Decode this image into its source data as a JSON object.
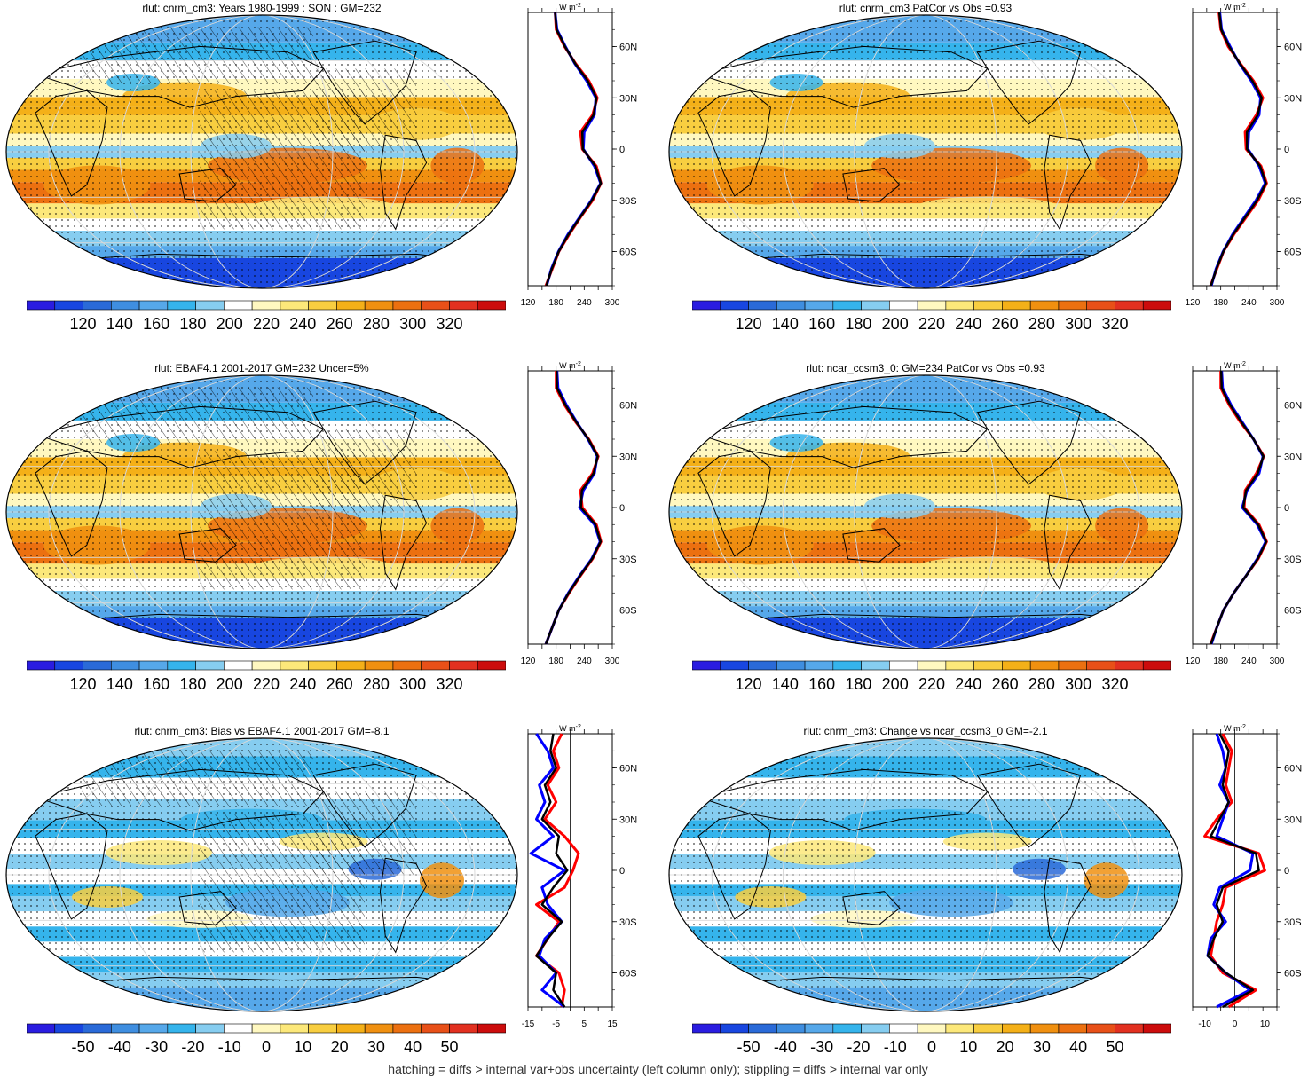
{
  "caption": "hatching = diffs > internal var+obs uncertainty (left column only); stippling = diffs > internal var only",
  "colors": {
    "full": [
      "#2a1ce0",
      "#1846e0",
      "#2a6ad8",
      "#3f8ee0",
      "#56a8ea",
      "#35b4ec",
      "#86cdf0",
      "#ffffff",
      "#fff8c0",
      "#fce87a",
      "#f8ce40",
      "#f4b018",
      "#f09010",
      "#ec7010",
      "#e85018",
      "#e23020",
      "#cc0c0c"
    ],
    "land": "#000000",
    "profile_model": "#0000ff",
    "profile_obs": "#ff0000",
    "profile_mean": "#000000"
  },
  "chart_data": [
    {
      "type": "heatmap",
      "title": "rlut: cnrm_cm3: Years 1980-1999 : SON : GM=232",
      "colorbar_ticks": [
        "120",
        "140",
        "160",
        "180",
        "200",
        "220",
        "240",
        "260",
        "280",
        "300",
        "320"
      ],
      "profile": {
        "unit": "W m",
        "unit_sup": "-2",
        "x_ticks": [
          "120",
          "180",
          "240",
          "300"
        ],
        "xlim": [
          120,
          300
        ],
        "lat_ticks": [
          "60N",
          "30N",
          "0",
          "30S",
          "60S"
        ],
        "lat": [
          80,
          70,
          60,
          50,
          40,
          30,
          20,
          10,
          0,
          -10,
          -20,
          -30,
          -40,
          -50,
          -60,
          -70,
          -80
        ],
        "model": [
          178,
          182,
          200,
          220,
          245,
          265,
          262,
          240,
          238,
          262,
          275,
          255,
          230,
          205,
          185,
          170,
          160
        ],
        "obs": [
          178,
          180,
          198,
          222,
          250,
          268,
          258,
          232,
          236,
          266,
          276,
          258,
          232,
          208,
          186,
          172,
          158
        ]
      }
    },
    {
      "type": "heatmap",
      "title": "rlut: cnrm_cm3 PatCor vs Obs =0.93",
      "colorbar_ticks": [
        "120",
        "140",
        "160",
        "180",
        "200",
        "220",
        "240",
        "260",
        "280",
        "300",
        "320"
      ],
      "profile": {
        "unit": "W m",
        "unit_sup": "-2",
        "x_ticks": [
          "120",
          "180",
          "240",
          "300"
        ],
        "xlim": [
          120,
          300
        ],
        "lat_ticks": [
          "60N",
          "30N",
          "0",
          "30S",
          "60S"
        ],
        "lat": [
          80,
          70,
          60,
          50,
          40,
          30,
          20,
          10,
          0,
          -10,
          -20,
          -30,
          -40,
          -50,
          -60,
          -70,
          -80
        ],
        "model": [
          178,
          182,
          200,
          220,
          245,
          265,
          262,
          240,
          238,
          262,
          275,
          255,
          230,
          205,
          185,
          170,
          160
        ],
        "obs": [
          176,
          180,
          196,
          222,
          250,
          270,
          256,
          232,
          234,
          266,
          278,
          260,
          234,
          208,
          186,
          172,
          158
        ]
      }
    },
    {
      "type": "heatmap",
      "title": "rlut: EBAF4.1 2001-2017 GM=232 Uncer=5%",
      "colorbar_ticks": [
        "120",
        "140",
        "160",
        "180",
        "200",
        "220",
        "240",
        "260",
        "280",
        "300",
        "320"
      ],
      "profile": {
        "unit": "W m",
        "unit_sup": "-2",
        "x_ticks": [
          "120",
          "180",
          "240",
          "300"
        ],
        "xlim": [
          120,
          300
        ],
        "lat_ticks": [
          "60N",
          "30N",
          "0",
          "30S",
          "60S"
        ],
        "lat": [
          80,
          70,
          60,
          50,
          40,
          30,
          20,
          10,
          0,
          -10,
          -20,
          -30,
          -40,
          -50,
          -60,
          -70,
          -80
        ],
        "model": [
          182,
          184,
          202,
          224,
          248,
          268,
          262,
          238,
          230,
          262,
          274,
          256,
          230,
          206,
          186,
          172,
          158
        ],
        "obs": [
          180,
          180,
          198,
          222,
          250,
          270,
          258,
          232,
          236,
          266,
          276,
          258,
          232,
          208,
          186,
          172,
          158
        ]
      }
    },
    {
      "type": "heatmap",
      "title": "rlut: ncar_ccsm3_0: GM=234 PatCor vs Obs =0.93",
      "colorbar_ticks": [
        "120",
        "140",
        "160",
        "180",
        "200",
        "220",
        "240",
        "260",
        "280",
        "300",
        "320"
      ],
      "profile": {
        "unit": "W m",
        "unit_sup": "-2",
        "x_ticks": [
          "120",
          "180",
          "240",
          "300"
        ],
        "xlim": [
          120,
          300
        ],
        "lat_ticks": [
          "60N",
          "30N",
          "0",
          "30S",
          "60S"
        ],
        "lat": [
          80,
          70,
          60,
          50,
          40,
          30,
          20,
          10,
          0,
          -10,
          -20,
          -30,
          -40,
          -50,
          -60,
          -70,
          -80
        ],
        "model": [
          182,
          184,
          202,
          226,
          250,
          270,
          262,
          236,
          226,
          258,
          276,
          258,
          234,
          208,
          186,
          172,
          160
        ],
        "obs": [
          180,
          180,
          198,
          222,
          250,
          272,
          256,
          232,
          230,
          262,
          278,
          260,
          234,
          208,
          186,
          172,
          158
        ]
      }
    },
    {
      "type": "heatmap",
      "title": "rlut: cnrm_cm3: Bias vs EBAF4.1 2001-2017  GM=-8.1",
      "colorbar_ticks": [
        "-50",
        "-40",
        "-30",
        "-20",
        "-10",
        "0",
        "10",
        "20",
        "30",
        "40",
        "50"
      ],
      "profile": {
        "unit": "W m",
        "unit_sup": "-2",
        "x_ticks": [
          "-15",
          "-5",
          "5",
          "15"
        ],
        "xlim": [
          -15,
          15
        ],
        "lat_ticks": [
          "60N",
          "30N",
          "0",
          "30S",
          "60S"
        ],
        "lat": [
          80,
          70,
          60,
          50,
          40,
          30,
          20,
          10,
          0,
          -10,
          -20,
          -30,
          -40,
          -50,
          -60,
          -70,
          -80
        ],
        "model": [
          -12,
          -8,
          -6,
          -11,
          -9,
          -12,
          -6,
          -14,
          -2,
          -10,
          -8,
          -3,
          -9,
          -11,
          -5,
          -10,
          -2
        ],
        "obs": [
          -3,
          -6,
          -4,
          -8,
          -5,
          -9,
          -2,
          3,
          1,
          -2,
          -12,
          -4,
          -8,
          -12,
          -4,
          -2,
          -3
        ],
        "mean": [
          -6,
          -7,
          -5,
          -9,
          -7,
          -10,
          -4,
          -5,
          -1,
          -6,
          -10,
          -3,
          -8,
          -12,
          -5,
          -6,
          -2
        ]
      }
    },
    {
      "type": "heatmap",
      "title": "rlut: cnrm_cm3: Change vs ncar_ccsm3_0 GM=-2.1",
      "colorbar_ticks": [
        "-50",
        "-40",
        "-30",
        "-20",
        "-10",
        "0",
        "10",
        "20",
        "30",
        "40",
        "50"
      ],
      "profile": {
        "unit": "W m",
        "unit_sup": "-2",
        "x_ticks": [
          "-10",
          "0",
          "10"
        ],
        "xlim": [
          -14,
          14
        ],
        "lat_ticks": [
          "60N",
          "30N",
          "0",
          "30S",
          "60S"
        ],
        "lat": [
          80,
          70,
          60,
          50,
          40,
          30,
          20,
          10,
          0,
          -10,
          -20,
          -30,
          -40,
          -50,
          -60,
          -70,
          -80
        ],
        "model": [
          -6,
          -4,
          -3,
          -5,
          -2,
          -4,
          -6,
          6,
          5,
          -5,
          -7,
          -3,
          -8,
          -9,
          -3,
          5,
          -6
        ],
        "obs": [
          -4,
          -1,
          -2,
          -3,
          -1,
          -6,
          -10,
          8,
          10,
          -3,
          -4,
          -6,
          -7,
          -8,
          -4,
          7,
          -2
        ],
        "mean": [
          -5,
          -2,
          -3,
          -4,
          -2,
          -5,
          -8,
          7,
          8,
          -4,
          -6,
          -4,
          -7,
          -9,
          -3,
          6,
          -4
        ]
      }
    }
  ]
}
